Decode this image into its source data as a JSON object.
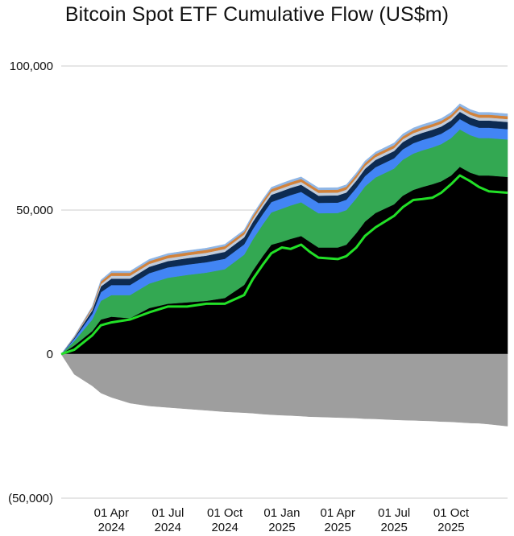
{
  "chart_data": {
    "type": "area",
    "title": "Bitcoin Spot ETF Cumulative Flow (US$m)",
    "xlabel": "",
    "ylabel": "",
    "ylim": [
      -50000,
      100000
    ],
    "xlim": [
      "2024-01-11",
      "2025-12-31"
    ],
    "grid": true,
    "legend": "none",
    "y_ticks": [
      {
        "value": 100000,
        "label": "100,000"
      },
      {
        "value": 50000,
        "label": "50,000"
      },
      {
        "value": 0,
        "label": "0"
      },
      {
        "value": -50000,
        "label": "(50,000)"
      }
    ],
    "x_ticks": [
      {
        "date": "2024-04-01",
        "label_1": "01 Apr",
        "label_2": "2024"
      },
      {
        "date": "2024-07-01",
        "label_1": "01 Jul",
        "label_2": "2024"
      },
      {
        "date": "2024-10-01",
        "label_1": "01 Oct",
        "label_2": "2024"
      },
      {
        "date": "2025-01-01",
        "label_1": "01 Jan",
        "label_2": "2025"
      },
      {
        "date": "2025-04-01",
        "label_1": "01 Apr",
        "label_2": "2025"
      },
      {
        "date": "2025-07-01",
        "label_1": "01 Jul",
        "label_2": "2025"
      },
      {
        "date": "2025-10-01",
        "label_1": "01 Oct",
        "label_2": "2025"
      }
    ],
    "x": [
      "2024-01-11",
      "2024-02-01",
      "2024-03-01",
      "2024-03-15",
      "2024-04-01",
      "2024-05-01",
      "2024-06-01",
      "2024-07-01",
      "2024-08-01",
      "2024-09-01",
      "2024-10-01",
      "2024-11-01",
      "2024-11-15",
      "2024-12-01",
      "2024-12-15",
      "2025-01-01",
      "2025-01-15",
      "2025-02-01",
      "2025-02-15",
      "2025-03-01",
      "2025-04-01",
      "2025-04-15",
      "2025-05-01",
      "2025-05-15",
      "2025-06-01",
      "2025-07-01",
      "2025-07-15",
      "2025-08-01",
      "2025-08-15",
      "2025-09-01",
      "2025-09-15",
      "2025-10-01",
      "2025-10-15",
      "2025-11-01",
      "2025-11-15",
      "2025-12-01",
      "2025-12-31"
    ],
    "positive_series": [
      {
        "color": "#000000",
        "values": [
          0,
          3000,
          8000,
          12000,
          13000,
          12500,
          16000,
          17500,
          18000,
          18500,
          19500,
          24000,
          29000,
          34000,
          38000,
          39000,
          40000,
          41000,
          39000,
          37000,
          37000,
          38000,
          42000,
          46000,
          49000,
          52000,
          55000,
          57000,
          58000,
          59000,
          60000,
          62000,
          65000,
          63000,
          62000,
          62000,
          61500
        ]
      },
      {
        "color": "#33a852",
        "values": [
          0,
          1500,
          4000,
          6500,
          7500,
          8000,
          8500,
          9000,
          9500,
          9800,
          10000,
          10500,
          10800,
          11000,
          11200,
          11500,
          11600,
          11700,
          11800,
          11900,
          12000,
          12000,
          12100,
          12200,
          12300,
          12400,
          12500,
          12600,
          12700,
          12800,
          12900,
          13000,
          13000,
          13000,
          13000,
          13000,
          13000
        ]
      },
      {
        "color": "#4285f4",
        "values": [
          0,
          800,
          2000,
          3000,
          3500,
          3500,
          3600,
          3600,
          3600,
          3600,
          3600,
          3600,
          3600,
          3600,
          3600,
          3600,
          3600,
          3600,
          3600,
          3600,
          3600,
          3600,
          3600,
          3600,
          3600,
          3600,
          3600,
          3600,
          3600,
          3600,
          3600,
          3600,
          3600,
          3600,
          3600,
          3600,
          3600
        ]
      },
      {
        "color": "#0d2b52",
        "values": [
          0,
          400,
          1200,
          2000,
          2200,
          2200,
          2200,
          2200,
          2200,
          2300,
          2400,
          2400,
          2500,
          2500,
          2500,
          2500,
          2500,
          2500,
          2500,
          2500,
          2500,
          2500,
          2500,
          2500,
          2500,
          2500,
          2500,
          2500,
          2500,
          2500,
          2500,
          2500,
          2500,
          2500,
          2500,
          2500,
          2500
        ]
      },
      {
        "color": "#c0ccdc",
        "values": [
          0,
          200,
          500,
          800,
          1000,
          1000,
          1000,
          1000,
          1000,
          1000,
          1000,
          1000,
          1000,
          1000,
          1000,
          1000,
          1000,
          1000,
          1000,
          1000,
          1000,
          1000,
          1000,
          1000,
          1000,
          1000,
          1000,
          1000,
          1000,
          1000,
          1000,
          1000,
          1000,
          1000,
          1000,
          1000,
          1000
        ]
      },
      {
        "color": "#d2823a",
        "values": [
          0,
          200,
          600,
          900,
          1000,
          1000,
          1000,
          1000,
          1000,
          1000,
          1000,
          1000,
          1000,
          1000,
          1000,
          1000,
          1000,
          1000,
          1000,
          1000,
          1000,
          1000,
          1000,
          1000,
          1000,
          1000,
          1000,
          1000,
          1000,
          1000,
          1000,
          1000,
          1000,
          1000,
          1000,
          1000,
          1000
        ]
      },
      {
        "color": "#8fb6e6",
        "values": [
          0,
          100,
          300,
          500,
          600,
          600,
          600,
          600,
          600,
          600,
          600,
          600,
          600,
          600,
          600,
          700,
          700,
          700,
          700,
          700,
          700,
          700,
          700,
          700,
          700,
          800,
          800,
          800,
          800,
          800,
          800,
          800,
          800,
          800,
          800,
          800,
          800
        ]
      }
    ],
    "negative_series": [
      {
        "color": "#9e9e9e",
        "values": [
          0,
          -7000,
          -11000,
          -13500,
          -15000,
          -17000,
          -18000,
          -18500,
          -19000,
          -19500,
          -20000,
          -20300,
          -20500,
          -20800,
          -21000,
          -21200,
          -21300,
          -21500,
          -21700,
          -21800,
          -22000,
          -22100,
          -22200,
          -22400,
          -22500,
          -22800,
          -22900,
          -23000,
          -23100,
          -23200,
          -23400,
          -23500,
          -23700,
          -23900,
          -24000,
          -24300,
          -25000
        ]
      }
    ],
    "net_line": {
      "color": "#22e027",
      "values": [
        0,
        1500,
        6500,
        10000,
        11000,
        12000,
        14500,
        16500,
        16500,
        17500,
        17500,
        20500,
        26000,
        31000,
        35000,
        37000,
        36500,
        38000,
        35500,
        33500,
        33000,
        34000,
        37000,
        41000,
        44000,
        48000,
        51000,
        53500,
        53800,
        54300,
        56000,
        59000,
        62000,
        60000,
        58000,
        56500,
        56000
      ]
    }
  }
}
